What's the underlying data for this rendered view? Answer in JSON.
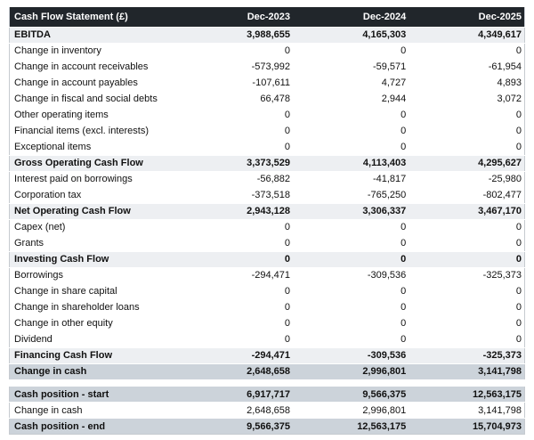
{
  "header": {
    "title": "Cash Flow Statement (£)",
    "columns": [
      "Dec-2023",
      "Dec-2024",
      "Dec-2025"
    ]
  },
  "rows": [
    {
      "label": "EBITDA",
      "values": [
        "3,988,655",
        "4,165,303",
        "4,349,617"
      ],
      "style": "subtotal"
    },
    {
      "label": "Change in inventory",
      "values": [
        "0",
        "0",
        "0"
      ],
      "style": "normal"
    },
    {
      "label": "Change in account receivables",
      "values": [
        "-573,992",
        "-59,571",
        "-61,954"
      ],
      "style": "normal"
    },
    {
      "label": "Change in account payables",
      "values": [
        "-107,611",
        "4,727",
        "4,893"
      ],
      "style": "normal"
    },
    {
      "label": "Change in fiscal and social debts",
      "values": [
        "66,478",
        "2,944",
        "3,072"
      ],
      "style": "normal"
    },
    {
      "label": "Other operating items",
      "values": [
        "0",
        "0",
        "0"
      ],
      "style": "normal"
    },
    {
      "label": "Financial items (excl. interests)",
      "values": [
        "0",
        "0",
        "0"
      ],
      "style": "normal"
    },
    {
      "label": "Exceptional items",
      "values": [
        "0",
        "0",
        "0"
      ],
      "style": "normal"
    },
    {
      "label": "Gross Operating Cash Flow",
      "values": [
        "3,373,529",
        "4,113,403",
        "4,295,627"
      ],
      "style": "subtotal"
    },
    {
      "label": "Interest paid on borrowings",
      "values": [
        "-56,882",
        "-41,817",
        "-25,980"
      ],
      "style": "normal"
    },
    {
      "label": "Corporation tax",
      "values": [
        "-373,518",
        "-765,250",
        "-802,477"
      ],
      "style": "normal"
    },
    {
      "label": "Net Operating Cash Flow",
      "values": [
        "2,943,128",
        "3,306,337",
        "3,467,170"
      ],
      "style": "subtotal"
    },
    {
      "label": "Capex (net)",
      "values": [
        "0",
        "0",
        "0"
      ],
      "style": "normal"
    },
    {
      "label": "Grants",
      "values": [
        "0",
        "0",
        "0"
      ],
      "style": "normal"
    },
    {
      "label": "Investing Cash Flow",
      "values": [
        "0",
        "0",
        "0"
      ],
      "style": "subtotal"
    },
    {
      "label": "Borrowings",
      "values": [
        "-294,471",
        "-309,536",
        "-325,373"
      ],
      "style": "normal"
    },
    {
      "label": "Change in share capital",
      "values": [
        "0",
        "0",
        "0"
      ],
      "style": "normal"
    },
    {
      "label": "Change in shareholder loans",
      "values": [
        "0",
        "0",
        "0"
      ],
      "style": "normal"
    },
    {
      "label": "Change in other equity",
      "values": [
        "0",
        "0",
        "0"
      ],
      "style": "normal"
    },
    {
      "label": "Dividend",
      "values": [
        "0",
        "0",
        "0"
      ],
      "style": "normal"
    },
    {
      "label": "Financing Cash Flow",
      "values": [
        "-294,471",
        "-309,536",
        "-325,373"
      ],
      "style": "subtotal"
    },
    {
      "label": "Change in cash",
      "values": [
        "2,648,658",
        "2,996,801",
        "3,141,798"
      ],
      "style": "highlight"
    }
  ],
  "summary_rows": [
    {
      "label": "Cash position - start",
      "values": [
        "6,917,717",
        "9,566,375",
        "12,563,175"
      ],
      "style": "highlight"
    },
    {
      "label": "Change in cash",
      "values": [
        "2,648,658",
        "2,996,801",
        "3,141,798"
      ],
      "style": "normal"
    },
    {
      "label": "Cash position - end",
      "values": [
        "9,566,375",
        "12,563,175",
        "15,704,973"
      ],
      "style": "highlight"
    }
  ],
  "colors": {
    "header_bg": "#21262b",
    "header_text": "#ffffff",
    "subtotal_bg": "#edeff2",
    "highlight_bg": "#ccd3da",
    "row_text": "#111111",
    "table_border": "#c6cbd0",
    "page_bg": "#ffffff"
  }
}
